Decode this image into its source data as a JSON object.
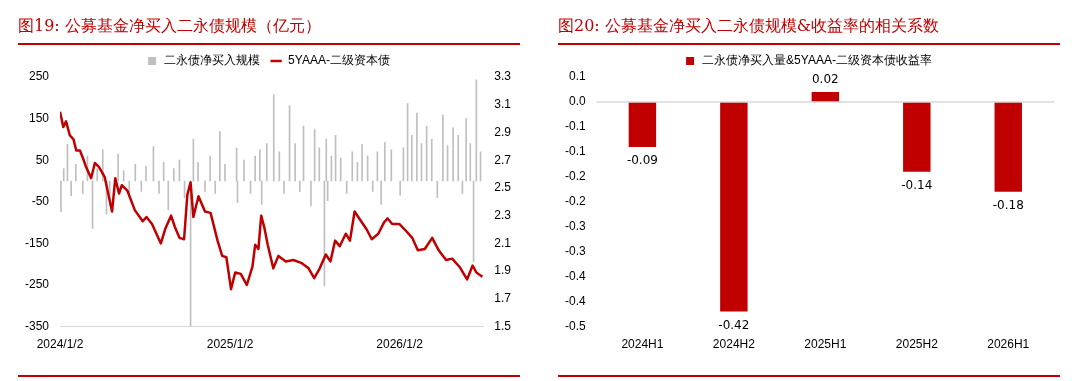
{
  "chart_data": [
    {
      "type": "bar",
      "title": "图19:  公募基金净买入二永债规模（亿元）",
      "legend": "top",
      "grid": false,
      "marker": "none",
      "xlim": [
        "2024-01-02",
        "2026-07-01"
      ],
      "xticks": [
        {
          "value": "2024-01-02",
          "label": "2024/1/2"
        },
        {
          "value": "2025-01-02",
          "label": "2025/1/2"
        },
        {
          "value": "2026-01-02",
          "label": "2026/1/2"
        }
      ],
      "ylim": [
        -350,
        250
      ],
      "yticks": [
        -350,
        -250,
        -150,
        -50,
        50,
        150,
        250
      ],
      "y2lim": [
        1.5,
        3.3
      ],
      "y2ticks": [
        1.5,
        1.7,
        1.9,
        2.1,
        2.3,
        2.5,
        2.7,
        2.9,
        3.1,
        3.3
      ],
      "series": [
        {
          "name": "二永债净买入规模",
          "type": "bar",
          "color": "#bfbfbf",
          "x": [
            "2024-01-04",
            "2024-01-10",
            "2024-01-18",
            "2024-01-26",
            "2024-02-05",
            "2024-02-20",
            "2024-03-01",
            "2024-03-12",
            "2024-03-22",
            "2024-04-03",
            "2024-04-11",
            "2024-04-18",
            "2024-05-06",
            "2024-05-18",
            "2024-05-30",
            "2024-06-12",
            "2024-06-25",
            "2024-07-05",
            "2024-07-21",
            "2024-08-02",
            "2024-08-12",
            "2024-08-22",
            "2024-09-03",
            "2024-09-15",
            "2024-09-26",
            "2024-10-09",
            "2024-10-15",
            "2024-10-25",
            "2024-11-09",
            "2024-11-20",
            "2024-12-01",
            "2024-12-11",
            "2024-12-22",
            "2025-01-16",
            "2025-01-18",
            "2025-02-01",
            "2025-02-15",
            "2025-02-25",
            "2025-03-07",
            "2025-03-11",
            "2025-03-22",
            "2025-04-06",
            "2025-04-18",
            "2025-04-28",
            "2025-05-10",
            "2025-05-22",
            "2025-06-01",
            "2025-06-09",
            "2025-06-25",
            "2025-07-03",
            "2025-07-13",
            "2025-07-24",
            "2025-07-28",
            "2025-07-31",
            "2025-08-08",
            "2025-08-17",
            "2025-08-28",
            "2025-09-10",
            "2025-09-22",
            "2025-10-03",
            "2025-10-13",
            "2025-10-25",
            "2025-11-05",
            "2025-11-15",
            "2025-11-23",
            "2025-12-01",
            "2025-12-15",
            "2026-01-03",
            "2026-01-10",
            "2026-01-19",
            "2026-01-28",
            "2026-02-08",
            "2026-02-18",
            "2026-03-01",
            "2026-03-12",
            "2026-03-24",
            "2026-04-05",
            "2026-04-15",
            "2026-04-27",
            "2026-05-08",
            "2026-05-17",
            "2026-05-25",
            "2026-06-03",
            "2026-06-10",
            "2026-06-16",
            "2026-06-25"
          ],
          "values": [
            -74,
            30,
            88,
            -35,
            40,
            -30,
            60,
            -114,
            30,
            75,
            -80,
            -60,
            65,
            25,
            -30,
            40,
            -25,
            35,
            83,
            -30,
            45,
            -69,
            30,
            50,
            -40,
            -350,
            101,
            45,
            -25,
            60,
            -30,
            119,
            40,
            79,
            -52,
            50,
            -30,
            60,
            75,
            -56,
            90,
            208,
            70,
            -30,
            181,
            90,
            -25,
            132,
            -60,
            124,
            80,
            -252,
            101,
            -47,
            60,
            110,
            55,
            -30,
            70,
            45,
            88,
            60,
            -25,
            70,
            -56,
            93,
            75,
            -34,
            80,
            186,
            110,
            163,
            90,
            132,
            100,
            -40,
            159,
            85,
            128,
            110,
            -30,
            150,
            90,
            -194,
            243,
            70
          ]
        },
        {
          "name": "5YAAA-二级资本债",
          "type": "line",
          "axis": "y2",
          "color": "#c00000",
          "x": [
            "2024-01-02",
            "2024-01-09",
            "2024-01-15",
            "2024-01-23",
            "2024-01-31",
            "2024-02-06",
            "2024-02-14",
            "2024-02-22",
            "2024-02-26",
            "2024-03-09",
            "2024-03-17",
            "2024-03-26",
            "2024-04-07",
            "2024-04-23",
            "2024-04-30",
            "2024-05-08",
            "2024-05-14",
            "2024-05-26",
            "2024-06-11",
            "2024-06-28",
            "2024-07-06",
            "2024-07-18",
            "2024-08-06",
            "2024-08-16",
            "2024-08-28",
            "2024-09-05",
            "2024-09-15",
            "2024-09-25",
            "2024-10-02",
            "2024-10-09",
            "2024-10-15",
            "2024-10-26",
            "2024-11-09",
            "2024-11-21",
            "2024-12-06",
            "2024-12-16",
            "2024-12-25",
            "2025-01-04",
            "2025-01-13",
            "2025-01-25",
            "2025-02-07",
            "2025-02-19",
            "2025-02-25",
            "2025-03-04",
            "2025-03-10",
            "2025-03-17",
            "2025-03-24",
            "2025-04-05",
            "2025-04-16",
            "2025-05-02",
            "2025-05-18",
            "2025-06-04",
            "2025-06-20",
            "2025-07-02",
            "2025-07-14",
            "2025-07-27",
            "2025-08-06",
            "2025-08-16",
            "2025-08-26",
            "2025-09-08",
            "2025-09-17",
            "2025-09-27",
            "2025-10-11",
            "2025-10-23",
            "2025-11-03",
            "2025-11-17",
            "2025-11-29",
            "2025-12-07",
            "2025-12-17",
            "2026-01-01",
            "2026-01-13",
            "2026-01-29",
            "2026-02-10",
            "2026-02-25",
            "2026-03-13",
            "2026-03-27",
            "2026-04-12",
            "2026-04-25",
            "2026-05-11",
            "2026-05-27",
            "2026-06-08",
            "2026-06-16",
            "2026-06-29"
          ],
          "values": [
            3.05,
            2.94,
            2.98,
            2.88,
            2.85,
            2.77,
            2.77,
            2.7,
            2.66,
            2.57,
            2.68,
            2.65,
            2.58,
            2.33,
            2.57,
            2.46,
            2.52,
            2.48,
            2.34,
            2.26,
            2.29,
            2.24,
            2.1,
            2.21,
            2.3,
            2.22,
            2.14,
            2.13,
            2.45,
            2.54,
            2.29,
            2.44,
            2.33,
            2.32,
            2.12,
            2.01,
            2.0,
            1.77,
            1.89,
            1.88,
            1.8,
            1.93,
            2.09,
            2.06,
            2.3,
            2.21,
            2.09,
            1.92,
            2.01,
            1.97,
            1.98,
            1.96,
            1.92,
            1.85,
            1.92,
            2.02,
            1.97,
            2.12,
            2.08,
            2.17,
            2.12,
            2.33,
            2.26,
            2.2,
            2.13,
            2.17,
            2.25,
            2.28,
            2.24,
            2.24,
            2.2,
            2.14,
            2.05,
            2.06,
            2.14,
            2.05,
            1.98,
            1.99,
            1.93,
            1.84,
            1.94,
            1.89,
            1.86
          ]
        }
      ]
    },
    {
      "type": "bar",
      "title": "图20:  公募基金净买入二永债规模&收益率的相关系数",
      "legend": "top",
      "grid": false,
      "data_labels": true,
      "categories": [
        "2024H1",
        "2024H2",
        "2025H1",
        "2025H2",
        "2026H1"
      ],
      "ref_lines": [
        {
          "axis": "y",
          "value": 0,
          "color": "#d9d9d9"
        }
      ],
      "ylim": [
        -0.45,
        0.05
      ],
      "yticks": [
        {
          "value": 0.05,
          "label": "0.1"
        },
        {
          "value": 0,
          "label": "0.0"
        },
        {
          "value": -0.05,
          "label": "-0.1"
        },
        {
          "value": -0.1,
          "label": "-0.1"
        },
        {
          "value": -0.15,
          "label": "-0.2"
        },
        {
          "value": -0.2,
          "label": "-0.2"
        },
        {
          "value": -0.25,
          "label": "-0.3"
        },
        {
          "value": -0.3,
          "label": "-0.3"
        },
        {
          "value": -0.35,
          "label": "-0.4"
        },
        {
          "value": -0.4,
          "label": "-0.4"
        },
        {
          "value": -0.45,
          "label": "-0.5"
        }
      ],
      "series": [
        {
          "name": "二永债净买入量&5YAAA-二级资本债收益率",
          "color": "#c00000",
          "values": [
            -0.09,
            -0.42,
            0.02,
            -0.14,
            -0.18
          ]
        }
      ]
    }
  ]
}
